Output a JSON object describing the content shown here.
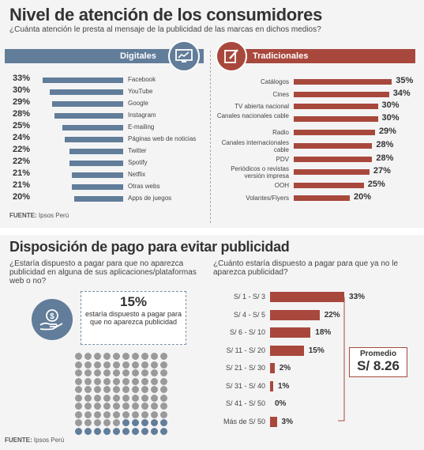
{
  "section1": {
    "title": "Nivel de atención de los consumidores",
    "question": "¿Cuánta atención le presta al mensaje de la publicidad de las marcas en dichos medios?",
    "left_tab": "Digitales",
    "right_tab": "Tradicionales",
    "left_icon": "monitor-chart-icon",
    "right_icon": "pencil-note-icon",
    "source_label": "FUENTE:",
    "source_name": "Ipsos Perú"
  },
  "section2": {
    "title": "Disposición de pago para evitar publicidad",
    "question_left": "¿Estaría dispuesto a pagar para que no aparezca publicidad en alguna de sus aplicaciones/plataformas web o no?",
    "question_right": "¿Cuánto estaría dispuesto a pagar para que ya no le aparezca publicidad?",
    "callout_pct": "15%",
    "callout_text": "estaría dispuesto a pagar para que no aparezca publicidad",
    "icon": "hand-coin-icon",
    "promedio_label": "Promedio",
    "promedio_value": "S/ 8.26",
    "source_label": "FUENTE:",
    "source_name": "Ipsos Perú"
  },
  "colors": {
    "digital": "#617d9a",
    "traditional": "#a8483c",
    "dot_grey": "#9a9a9a",
    "dot_blue": "#617d9a"
  },
  "chart_data": [
    {
      "type": "bar",
      "title": "Digitales",
      "categories": [
        "Facebook",
        "YouTube",
        "Google",
        "Instagram",
        "E-mailing",
        "Páginas web de noticias",
        "Twitter",
        "Spotify",
        "Netflix",
        "Otras webs",
        "Apps de juegos"
      ],
      "values": [
        33,
        30,
        29,
        28,
        25,
        24,
        22,
        22,
        21,
        21,
        20
      ],
      "labels": [
        "33%",
        "30%",
        "29%",
        "28%",
        "25%",
        "24%",
        "22%",
        "22%",
        "21%",
        "21%",
        "20%"
      ]
    },
    {
      "type": "bar",
      "title": "Tradicionales",
      "categories": [
        "Catálogos",
        "Cines",
        "TV abierta nacional",
        "Canales nacionales cable",
        "Radio",
        "Canales internacionales cable",
        "PDV",
        "Periódicos o revistas versión impresa",
        "OOH",
        "Volantes/Flyers"
      ],
      "values": [
        35,
        34,
        30,
        30,
        29,
        28,
        28,
        27,
        25,
        20
      ],
      "labels": [
        "35%",
        "34%",
        "30%",
        "30%",
        "29%",
        "28%",
        "28%",
        "27%",
        "25%",
        "20%"
      ]
    },
    {
      "type": "bar",
      "title": "",
      "categories": [
        "S/ 1 - S/ 3",
        "S/ 4 - S/ 5",
        "S/ 6 - S/ 10",
        "S/ 11 - S/ 20",
        "S/ 21 - S/ 30",
        "S/ 31 - S/ 40",
        "S/ 41 - S/ 50",
        "Más de S/ 50"
      ],
      "values": [
        33,
        22,
        18,
        15,
        2,
        1,
        0,
        3
      ],
      "labels": [
        "33%",
        "22%",
        "18%",
        "15%",
        "2%",
        "1%",
        "0%",
        "3%"
      ]
    },
    {
      "type": "waffle",
      "total": 100,
      "highlighted": 15
    }
  ]
}
